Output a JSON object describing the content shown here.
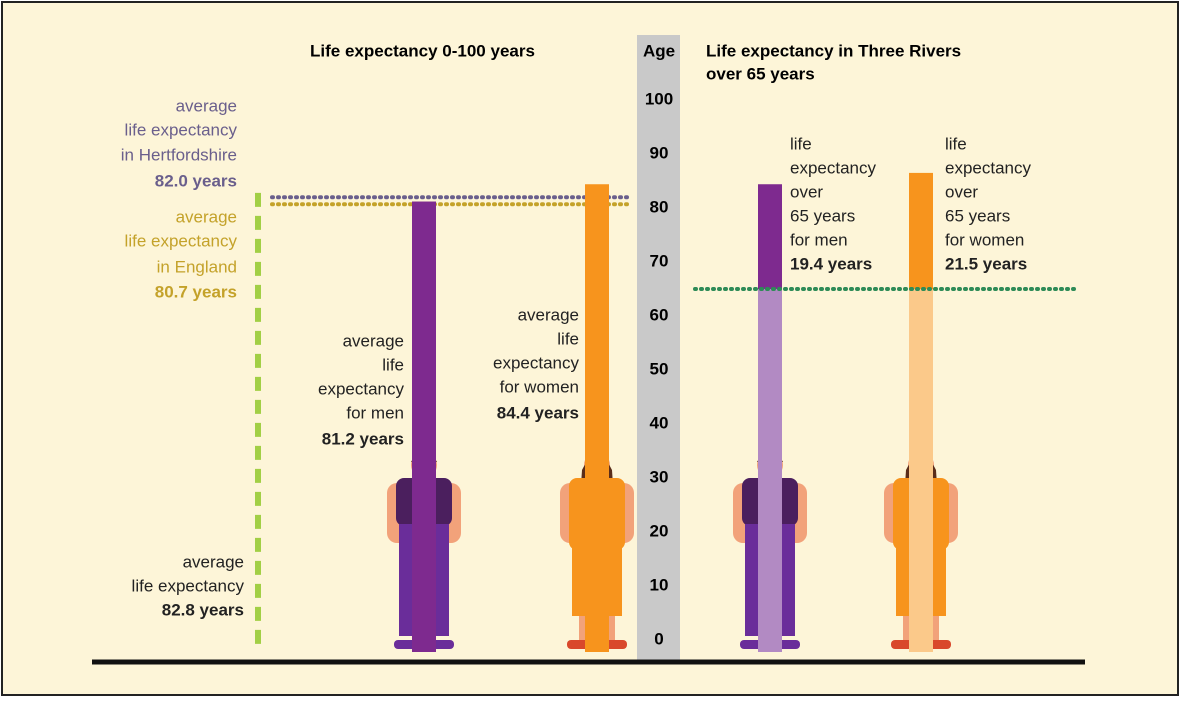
{
  "chart_data": {
    "type": "infographic",
    "left_title": "Life expectancy 0-100 years",
    "right_title": [
      "Life expectancy in Three Rivers",
      "over 65 years"
    ],
    "axis": {
      "label": "Age",
      "ylim": [
        0,
        100
      ],
      "yticks": [
        0,
        10,
        20,
        30,
        40,
        50,
        60,
        70,
        80,
        90,
        100
      ]
    },
    "references": [
      {
        "lines": [
          "average",
          "life expectancy",
          "in Hertfordshire"
        ],
        "value": 82.0,
        "value_label": "82.0 years",
        "color": "#6a5f8c"
      },
      {
        "lines": [
          "average",
          "life expectancy",
          "in England"
        ],
        "value": 80.7,
        "value_label": "80.7 years",
        "color": "#c4a22a"
      },
      {
        "lines": [
          "average",
          "life expectancy"
        ],
        "value": 82.8,
        "value_label": "82.8 years",
        "color": "#a2cf45"
      }
    ],
    "bars": [
      {
        "lines": [
          "average",
          "life",
          "expectancy",
          "for men"
        ],
        "value": 81.2,
        "value_label": "81.2 years",
        "color": "#7e2a8f"
      },
      {
        "lines": [
          "average",
          "life",
          "expectancy",
          "for women"
        ],
        "value": 84.4,
        "value_label": "84.4 years",
        "color": "#f7941d"
      }
    ],
    "over65": {
      "threshold": 65,
      "line_color": "#2e8b57",
      "bars": [
        {
          "lines": [
            "life",
            "expectancy",
            "over",
            "65 years",
            "for men"
          ],
          "value": 19.4,
          "value_label": "19.4 years",
          "color": "#7e2a8f",
          "base_color": "#b28ac3"
        },
        {
          "lines": [
            "life",
            "expectancy",
            "over",
            "65 years",
            "for women"
          ],
          "value": 21.5,
          "value_label": "21.5 years",
          "color": "#f7941d",
          "base_color": "#fbc98a"
        }
      ]
    }
  }
}
